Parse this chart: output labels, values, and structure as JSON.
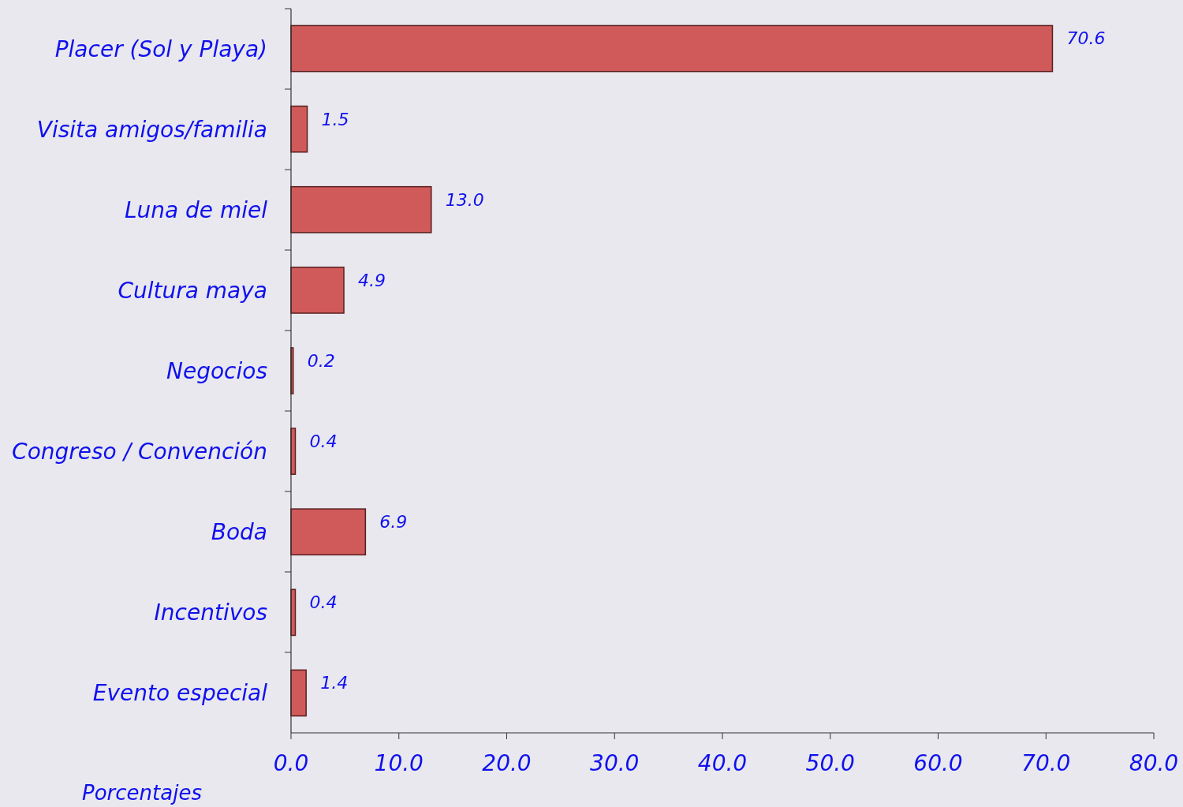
{
  "chart_data": {
    "type": "bar",
    "orientation": "horizontal",
    "xlabel": "Porcentajes",
    "categories": [
      "Placer (Sol y Playa)",
      "Visita amigos/familia",
      "Luna de miel",
      "Cultura maya",
      "Negocios",
      "Congreso / Convención",
      "Boda",
      "Incentivos",
      "Evento especial"
    ],
    "values": [
      70.6,
      1.5,
      13.0,
      4.9,
      0.2,
      0.4,
      6.9,
      0.4,
      1.4
    ],
    "value_labels": [
      "70.6",
      "1.5",
      "13.0",
      "4.9",
      "0.2",
      "0.4",
      "6.9",
      "0.4",
      "1.4"
    ],
    "color": "#d05a5a",
    "xlim": [
      0,
      80
    ],
    "xticks": [
      {
        "value": 0,
        "label": "0.0"
      },
      {
        "value": 10,
        "label": "10.0"
      },
      {
        "value": 20,
        "label": "20.0"
      },
      {
        "value": 30,
        "label": "30.0"
      },
      {
        "value": 40,
        "label": "40.0"
      },
      {
        "value": 50,
        "label": "50.0"
      },
      {
        "value": 60,
        "label": "60.0"
      },
      {
        "value": 70,
        "label": "70.0"
      },
      {
        "value": 80,
        "label": "80.0"
      }
    ],
    "grid": false
  }
}
